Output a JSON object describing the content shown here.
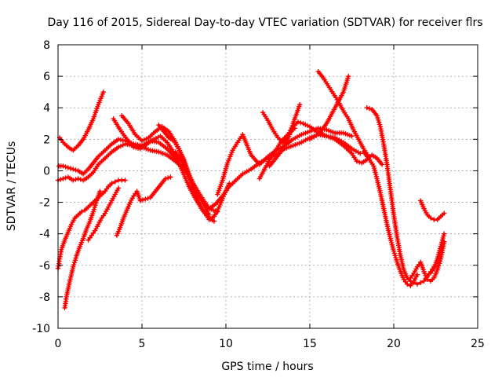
{
  "chart_data": {
    "type": "scatter",
    "title": "Day 116 of 2015, Sidereal Day-to-day VTEC variation (SDTVAR) for receiver flrs",
    "xlabel": "GPS time / hours",
    "ylabel": "SDTVAR / TECUs",
    "xlim": [
      0,
      25
    ],
    "ylim": [
      -10,
      8
    ],
    "xticks": [
      0,
      5,
      10,
      15,
      20,
      25
    ],
    "yticks": [
      -10,
      -8,
      -6,
      -4,
      -2,
      0,
      2,
      4,
      6,
      8
    ],
    "grid": true,
    "marker": "plus",
    "color": "#ff0000",
    "series": [
      {
        "x": [
          0.1,
          0.3,
          0.6,
          0.9,
          1.2,
          1.5,
          1.8,
          2.1,
          2.4,
          2.7
        ],
        "y": [
          2.1,
          1.8,
          1.5,
          1.3,
          1.6,
          2.0,
          2.6,
          3.3,
          4.2,
          5.0
        ]
      },
      {
        "x": [
          0.05,
          0.3,
          0.6,
          0.9,
          1.2,
          1.5,
          1.8,
          2.1,
          2.4,
          2.8,
          3.2,
          3.6,
          4.0,
          4.5,
          5.0,
          5.5,
          6.0,
          6.5,
          7.0
        ],
        "y": [
          0.3,
          0.3,
          0.2,
          0.1,
          0.0,
          -0.2,
          0.1,
          0.5,
          0.9,
          1.3,
          1.7,
          2.0,
          1.9,
          1.7,
          1.6,
          1.9,
          1.8,
          1.4,
          0.8
        ]
      },
      {
        "x": [
          0.0,
          0.3,
          0.6,
          0.9,
          1.2,
          1.5,
          1.8,
          2.1,
          2.4,
          2.8,
          3.2,
          3.6,
          4.0,
          4.5,
          5.0,
          5.5,
          6.0,
          6.5,
          7.0,
          7.5,
          8.0,
          8.5,
          9.0,
          9.5
        ],
        "y": [
          -0.6,
          -0.5,
          -0.4,
          -0.6,
          -0.5,
          -0.6,
          -0.4,
          -0.1,
          0.4,
          0.8,
          1.2,
          1.5,
          1.7,
          1.6,
          1.5,
          1.3,
          1.2,
          1.0,
          0.6,
          0.1,
          -0.7,
          -1.6,
          -2.4,
          -2.6
        ]
      },
      {
        "x": [
          0.0,
          0.1,
          0.2,
          0.4,
          0.6,
          0.8,
          1.0,
          1.2,
          1.4,
          1.6,
          1.8,
          2.0,
          2.2,
          2.4,
          2.6,
          2.8,
          3.0,
          3.2,
          3.4,
          3.6,
          3.8,
          4.0
        ],
        "y": [
          -6.2,
          -5.6,
          -5.0,
          -4.4,
          -3.9,
          -3.4,
          -3.0,
          -2.8,
          -2.6,
          -2.5,
          -2.3,
          -2.1,
          -1.9,
          -1.7,
          -1.5,
          -1.3,
          -1.0,
          -0.8,
          -0.7,
          -0.6,
          -0.6,
          -0.6
        ]
      },
      {
        "x": [
          0.4,
          0.5,
          0.7,
          0.9,
          1.1,
          1.3,
          1.5,
          1.7,
          1.9,
          2.1,
          2.3,
          2.5
        ],
        "y": [
          -8.7,
          -8.0,
          -7.0,
          -6.1,
          -5.4,
          -4.8,
          -4.3,
          -3.7,
          -3.2,
          -2.6,
          -1.9,
          -1.3
        ]
      },
      {
        "x": [
          1.8,
          2.0,
          2.2,
          2.4,
          2.6,
          2.8,
          3.0,
          3.2,
          3.4,
          3.6
        ],
        "y": [
          -4.4,
          -4.1,
          -3.8,
          -3.4,
          -3.0,
          -2.7,
          -2.3,
          -1.9,
          -1.5,
          -1.1
        ]
      },
      {
        "x": [
          3.5,
          3.7,
          3.9,
          4.1,
          4.3,
          4.5,
          4.7,
          4.9,
          5.2,
          5.5,
          5.8,
          6.1,
          6.4,
          6.7
        ],
        "y": [
          -4.1,
          -3.6,
          -3.0,
          -2.5,
          -2.0,
          -1.6,
          -1.3,
          -1.9,
          -1.8,
          -1.7,
          -1.3,
          -0.9,
          -0.5,
          -0.4
        ]
      },
      {
        "x": [
          3.3,
          3.7,
          4.1,
          4.5,
          4.9,
          5.3,
          5.7,
          6.1,
          6.5,
          7.0,
          7.4,
          7.8,
          8.2,
          8.6,
          9.0,
          9.3
        ],
        "y": [
          3.3,
          2.6,
          2.0,
          1.5,
          1.4,
          1.7,
          2.0,
          2.2,
          1.8,
          1.0,
          0.0,
          -1.0,
          -1.8,
          -2.5,
          -3.0,
          -3.2
        ]
      },
      {
        "x": [
          3.8,
          4.2,
          4.6,
          5.0,
          5.4,
          5.8,
          6.2,
          6.6,
          7.0,
          7.4,
          7.8,
          8.2,
          8.6,
          9.0
        ],
        "y": [
          3.5,
          3.0,
          2.3,
          1.9,
          2.1,
          2.5,
          2.8,
          2.5,
          1.8,
          0.9,
          -0.2,
          -1.2,
          -2.0,
          -2.8
        ]
      },
      {
        "x": [
          6.0,
          6.3,
          6.6,
          6.9,
          7.2,
          7.5,
          7.8,
          8.1,
          8.4,
          8.7,
          9.0,
          9.3,
          9.6,
          9.9,
          10.2
        ],
        "y": [
          2.9,
          2.5,
          2.1,
          1.9,
          1.4,
          0.7,
          -0.3,
          -1.3,
          -2.0,
          -2.6,
          -3.1,
          -2.9,
          -2.3,
          -1.5,
          -0.8
        ]
      },
      {
        "x": [
          7.0,
          7.4,
          7.8,
          8.2,
          8.6,
          9.0,
          9.4,
          9.8,
          10.2,
          10.6,
          11.0,
          11.5,
          12.0,
          12.5,
          13.0,
          13.5,
          14.0,
          14.5,
          15.0,
          15.5,
          16.0,
          16.5,
          17.0,
          17.5,
          18.0
        ],
        "y": [
          1.2,
          0.5,
          -0.3,
          -1.2,
          -1.9,
          -2.4,
          -2.1,
          -1.6,
          -1.0,
          -0.6,
          -0.2,
          0.1,
          0.5,
          0.8,
          1.0,
          1.4,
          1.6,
          1.8,
          2.1,
          2.3,
          2.2,
          2.1,
          1.8,
          1.4,
          1.1
        ]
      },
      {
        "x": [
          9.5,
          9.8,
          10.1,
          10.4,
          10.7,
          11.0,
          11.5,
          12.0,
          12.5,
          13.0,
          13.5,
          14.0,
          14.5,
          15.0,
          15.5,
          16.0,
          16.5,
          17.0,
          17.5
        ],
        "y": [
          -1.5,
          -0.6,
          0.5,
          1.3,
          1.8,
          2.3,
          1.0,
          0.4,
          0.9,
          1.3,
          1.6,
          2.0,
          2.3,
          2.5,
          2.7,
          2.6,
          2.4,
          2.4,
          2.2
        ]
      },
      {
        "x": [
          12.2,
          12.5,
          12.8,
          13.1,
          13.4,
          13.7,
          14.0,
          14.3,
          14.6,
          15.0,
          15.4,
          15.8
        ],
        "y": [
          3.7,
          3.2,
          2.6,
          2.1,
          1.8,
          2.3,
          2.8,
          3.1,
          3.0,
          2.8,
          2.5,
          2.3
        ]
      },
      {
        "x": [
          12.6,
          12.9,
          13.2,
          13.5,
          13.8,
          14.0,
          14.2,
          14.4
        ],
        "y": [
          0.3,
          0.7,
          1.1,
          1.6,
          2.3,
          3.0,
          3.6,
          4.2
        ]
      },
      {
        "x": [
          12.0,
          12.3,
          12.6,
          12.9,
          13.2,
          13.5,
          13.8,
          14.1
        ],
        "y": [
          -0.5,
          0.1,
          0.7,
          1.2,
          1.7,
          2.1,
          2.4,
          2.7
        ]
      },
      {
        "x": [
          15.5,
          15.8,
          16.1,
          16.4,
          16.7,
          17.0,
          17.3,
          17.6,
          17.9,
          18.2,
          18.5
        ],
        "y": [
          6.3,
          5.9,
          5.4,
          4.9,
          4.4,
          3.8,
          3.3,
          2.6,
          2.0,
          1.4,
          0.9
        ]
      },
      {
        "x": [
          15.0,
          15.5,
          16.0,
          16.5,
          17.0,
          17.3
        ],
        "y": [
          2.0,
          2.3,
          3.0,
          4.0,
          5.0,
          6.0
        ]
      },
      {
        "x": [
          15.5,
          16.0,
          16.5,
          17.0,
          17.5,
          17.8,
          18.1,
          18.4,
          18.7,
          19.0,
          19.3
        ],
        "y": [
          2.4,
          2.2,
          2.0,
          1.6,
          1.1,
          0.6,
          0.5,
          0.7,
          1.0,
          0.8,
          0.4
        ]
      },
      {
        "x": [
          18.4,
          18.7,
          19.0,
          19.2,
          19.4,
          19.6,
          19.8,
          20.0,
          20.2,
          20.4,
          20.6,
          20.8,
          21.0,
          21.2,
          21.4,
          21.6,
          21.8,
          22.0,
          22.2,
          22.4,
          22.6,
          22.8,
          23.0
        ],
        "y": [
          4.0,
          3.9,
          3.5,
          2.8,
          1.7,
          0.4,
          -1.2,
          -2.8,
          -4.2,
          -5.4,
          -6.3,
          -6.8,
          -7.0,
          -7.1,
          -7.2,
          -7.1,
          -7.0,
          -6.7,
          -6.4,
          -6.1,
          -5.7,
          -5.2,
          -4.5
        ]
      },
      {
        "x": [
          18.2,
          18.5,
          18.8,
          19.0,
          19.2,
          19.4,
          19.6,
          19.8,
          20.0,
          20.2,
          20.4,
          20.6,
          20.8,
          21.0,
          21.2,
          21.4
        ],
        "y": [
          1.2,
          0.8,
          0.3,
          -0.5,
          -1.4,
          -2.4,
          -3.4,
          -4.3,
          -5.1,
          -5.8,
          -6.4,
          -6.9,
          -7.2,
          -7.3,
          -7.0,
          -6.6
        ]
      },
      {
        "x": [
          21.0,
          21.2,
          21.4,
          21.6,
          21.8,
          22.0,
          22.2,
          22.4,
          22.6,
          22.8,
          23.0
        ],
        "y": [
          -6.8,
          -6.5,
          -6.1,
          -5.8,
          -6.4,
          -6.9,
          -7.0,
          -6.8,
          -6.3,
          -5.6,
          -4.5
        ]
      },
      {
        "x": [
          22.2,
          22.4,
          22.6,
          22.8,
          23.0
        ],
        "y": [
          -6.5,
          -6.2,
          -5.6,
          -4.8,
          -4.0
        ]
      },
      {
        "x": [
          21.6,
          21.8,
          22.0,
          22.2,
          22.4,
          22.6,
          22.8,
          23.0
        ],
        "y": [
          -1.9,
          -2.4,
          -2.8,
          -3.0,
          -3.1,
          -3.1,
          -2.9,
          -2.7
        ]
      }
    ]
  }
}
